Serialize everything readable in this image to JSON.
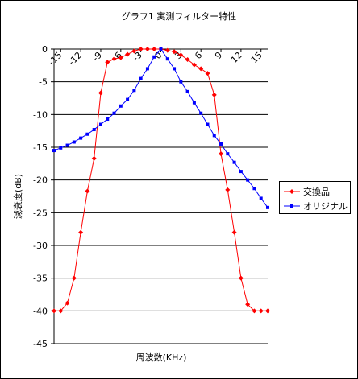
{
  "chart_data": {
    "type": "line",
    "title": "グラフ1 実測フィルター特性",
    "x_label": "周波数(KHz)",
    "y_label": "減衰度(dB)",
    "xlim": [
      -16,
      16
    ],
    "xticks": [
      -15,
      -12,
      -9,
      -6,
      -3,
      0,
      3,
      6,
      9,
      12,
      15
    ],
    "ylim": [
      -45,
      0
    ],
    "yticks": [
      0,
      -5,
      -10,
      -15,
      -20,
      -25,
      -30,
      -35,
      -40,
      -45
    ],
    "grid": true,
    "legend": "right",
    "x": [
      -16,
      -15,
      -14,
      -13,
      -12,
      -11,
      -10,
      -9,
      -8,
      -7,
      -6,
      -5,
      -4,
      -3,
      -2,
      -1,
      0,
      1,
      2,
      3,
      4,
      5,
      6,
      7,
      8,
      9,
      10,
      11,
      12,
      13,
      14,
      15,
      16
    ],
    "series": [
      {
        "name": "交換品",
        "color": "#ff0000",
        "marker": "diamond",
        "values": [
          -40,
          -40,
          -38.8,
          -35,
          -28,
          -21.7,
          -16.7,
          -6.7,
          -2,
          -1.5,
          -1.3,
          -0.8,
          -0.3,
          0,
          0,
          0,
          0,
          -0.2,
          -0.4,
          -0.9,
          -1.6,
          -2.4,
          -3,
          -3.7,
          -7,
          -16,
          -21.5,
          -28,
          -35,
          -39,
          -40,
          -40,
          -40
        ]
      },
      {
        "name": "オリジナル",
        "color": "#0000ff",
        "marker": "square",
        "values": [
          -15.5,
          -15.1,
          -14.7,
          -14.2,
          -13.6,
          -13,
          -12.3,
          -11.5,
          -10.7,
          -9.8,
          -8.7,
          -7.7,
          -6.3,
          -4.5,
          -3,
          -1.2,
          0,
          -1.5,
          -3,
          -5,
          -6.5,
          -8.2,
          -9.8,
          -11.5,
          -13.2,
          -14.5,
          -16,
          -17.3,
          -18.7,
          -20,
          -21.3,
          -22.8,
          -24.2
        ]
      }
    ]
  }
}
